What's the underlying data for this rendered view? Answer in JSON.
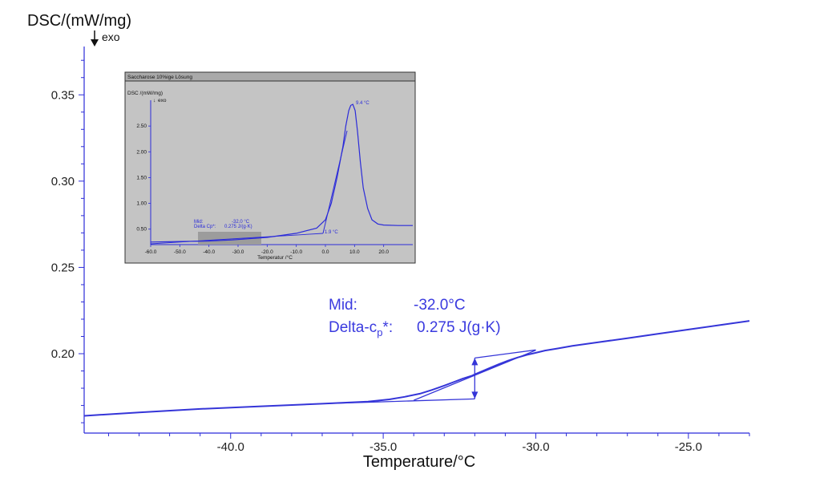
{
  "chart_data": [
    {
      "type": "line",
      "title": "",
      "xlabel": "Temperature/°C",
      "ylabel": "DSC/(mW/mg)",
      "y_direction_label": "exo",
      "xlim": [
        -44.8,
        -23.0
      ],
      "ylim": [
        0.154,
        0.378
      ],
      "x_ticks": [
        -40.0,
        -35.0,
        -30.0,
        -25.0
      ],
      "y_ticks": [
        0.2,
        0.25,
        0.3,
        0.35
      ],
      "x_tick_labels": [
        "-40.0",
        "-35.0",
        "-30.0",
        "-25.0"
      ],
      "y_tick_labels": [
        "0.20",
        "0.25",
        "0.30",
        "0.35"
      ],
      "grid": false,
      "series": [
        {
          "x": [
            -44.8,
            -43.0,
            -41.0,
            -39.0,
            -37.0,
            -35.5,
            -34.8,
            -34.3,
            -33.8,
            -33.4,
            -33.0,
            -32.7,
            -32.4,
            -32.1,
            -32.0,
            -31.8,
            -31.5,
            -31.2,
            -30.9,
            -30.6,
            -30.3,
            -30.0,
            -29.7,
            -29.3,
            -28.8,
            -28.0,
            -27.0,
            -26.0,
            -25.0,
            -24.0,
            -23.0
          ],
          "y": [
            0.164,
            0.166,
            0.168,
            0.1695,
            0.171,
            0.1722,
            0.1735,
            0.175,
            0.1768,
            0.179,
            0.1815,
            0.1835,
            0.1855,
            0.1872,
            0.188,
            0.1895,
            0.1918,
            0.194,
            0.196,
            0.1978,
            0.1993,
            0.2005,
            0.2018,
            0.203,
            0.2045,
            0.2065,
            0.209,
            0.2115,
            0.214,
            0.2165,
            0.219
          ]
        }
      ],
      "construction_lines": [
        {
          "name": "lower-baseline",
          "x": [
            -37.0,
            -32.0
          ],
          "y": [
            0.171,
            0.1738
          ]
        },
        {
          "name": "inflection-tangent",
          "x": [
            -34.0,
            -30.0
          ],
          "y": [
            0.173,
            0.202
          ]
        },
        {
          "name": "upper-baseline",
          "x": [
            -32.0,
            -30.0
          ],
          "y": [
            0.1975,
            0.2022
          ]
        },
        {
          "name": "step-height",
          "x": [
            -32.0,
            -32.0
          ],
          "y": [
            0.1738,
            0.1975
          ]
        }
      ],
      "annotation": {
        "mid_label": "Mid:",
        "mid_value": "-32.0°C",
        "delta_label_main": "Delta-c",
        "delta_label_sub": "p",
        "delta_label_tail": "*:",
        "delta_value": "0.275 J(g·K)"
      }
    },
    {
      "type": "line",
      "title": "Saccharose 10%ige Lösung",
      "xlabel": "Temperatur /°C",
      "ylabel": "DSC /(mW/mg)",
      "y_direction_label": "exo",
      "xlim": [
        -60.0,
        30.0
      ],
      "ylim": [
        0.2,
        3.0
      ],
      "x_ticks": [
        -60.0,
        -50.0,
        -40.0,
        -30.0,
        -20.0,
        -10.0,
        0.0,
        10.0,
        20.0
      ],
      "y_ticks": [
        0.5,
        1.0,
        1.5,
        2.0,
        2.5
      ],
      "x_tick_labels": [
        "-60.0",
        "-50.0",
        "-40.0",
        "-30.0",
        "-20.0",
        "-10.0",
        "0.0",
        "10.0",
        "20.0"
      ],
      "y_tick_labels": [
        "0.50",
        "1.00",
        "1.50",
        "2.00",
        "2.50"
      ],
      "series": [
        {
          "x": [
            -60,
            -50,
            -40,
            -32,
            -20,
            -10,
            -3,
            0,
            2,
            4,
            6,
            7,
            8,
            8.7,
            9.4,
            10.2,
            11.0,
            12.0,
            13.0,
            14.5,
            16.0,
            18.0,
            20.0,
            25.0,
            30.0
          ],
          "y": [
            0.25,
            0.26,
            0.27,
            0.29,
            0.34,
            0.42,
            0.52,
            0.68,
            1.0,
            1.5,
            2.1,
            2.5,
            2.8,
            2.9,
            2.92,
            2.8,
            2.4,
            1.8,
            1.3,
            0.9,
            0.68,
            0.6,
            0.58,
            0.57,
            0.57
          ]
        }
      ],
      "peak_label": "9.4 °C",
      "onset_label": "1.9 °C",
      "mid_label": "Mid:",
      "mid_value": "-32.0 °C",
      "delta_label": "Delta Cp*:",
      "delta_value": "0.275 J/(g·K)"
    }
  ]
}
